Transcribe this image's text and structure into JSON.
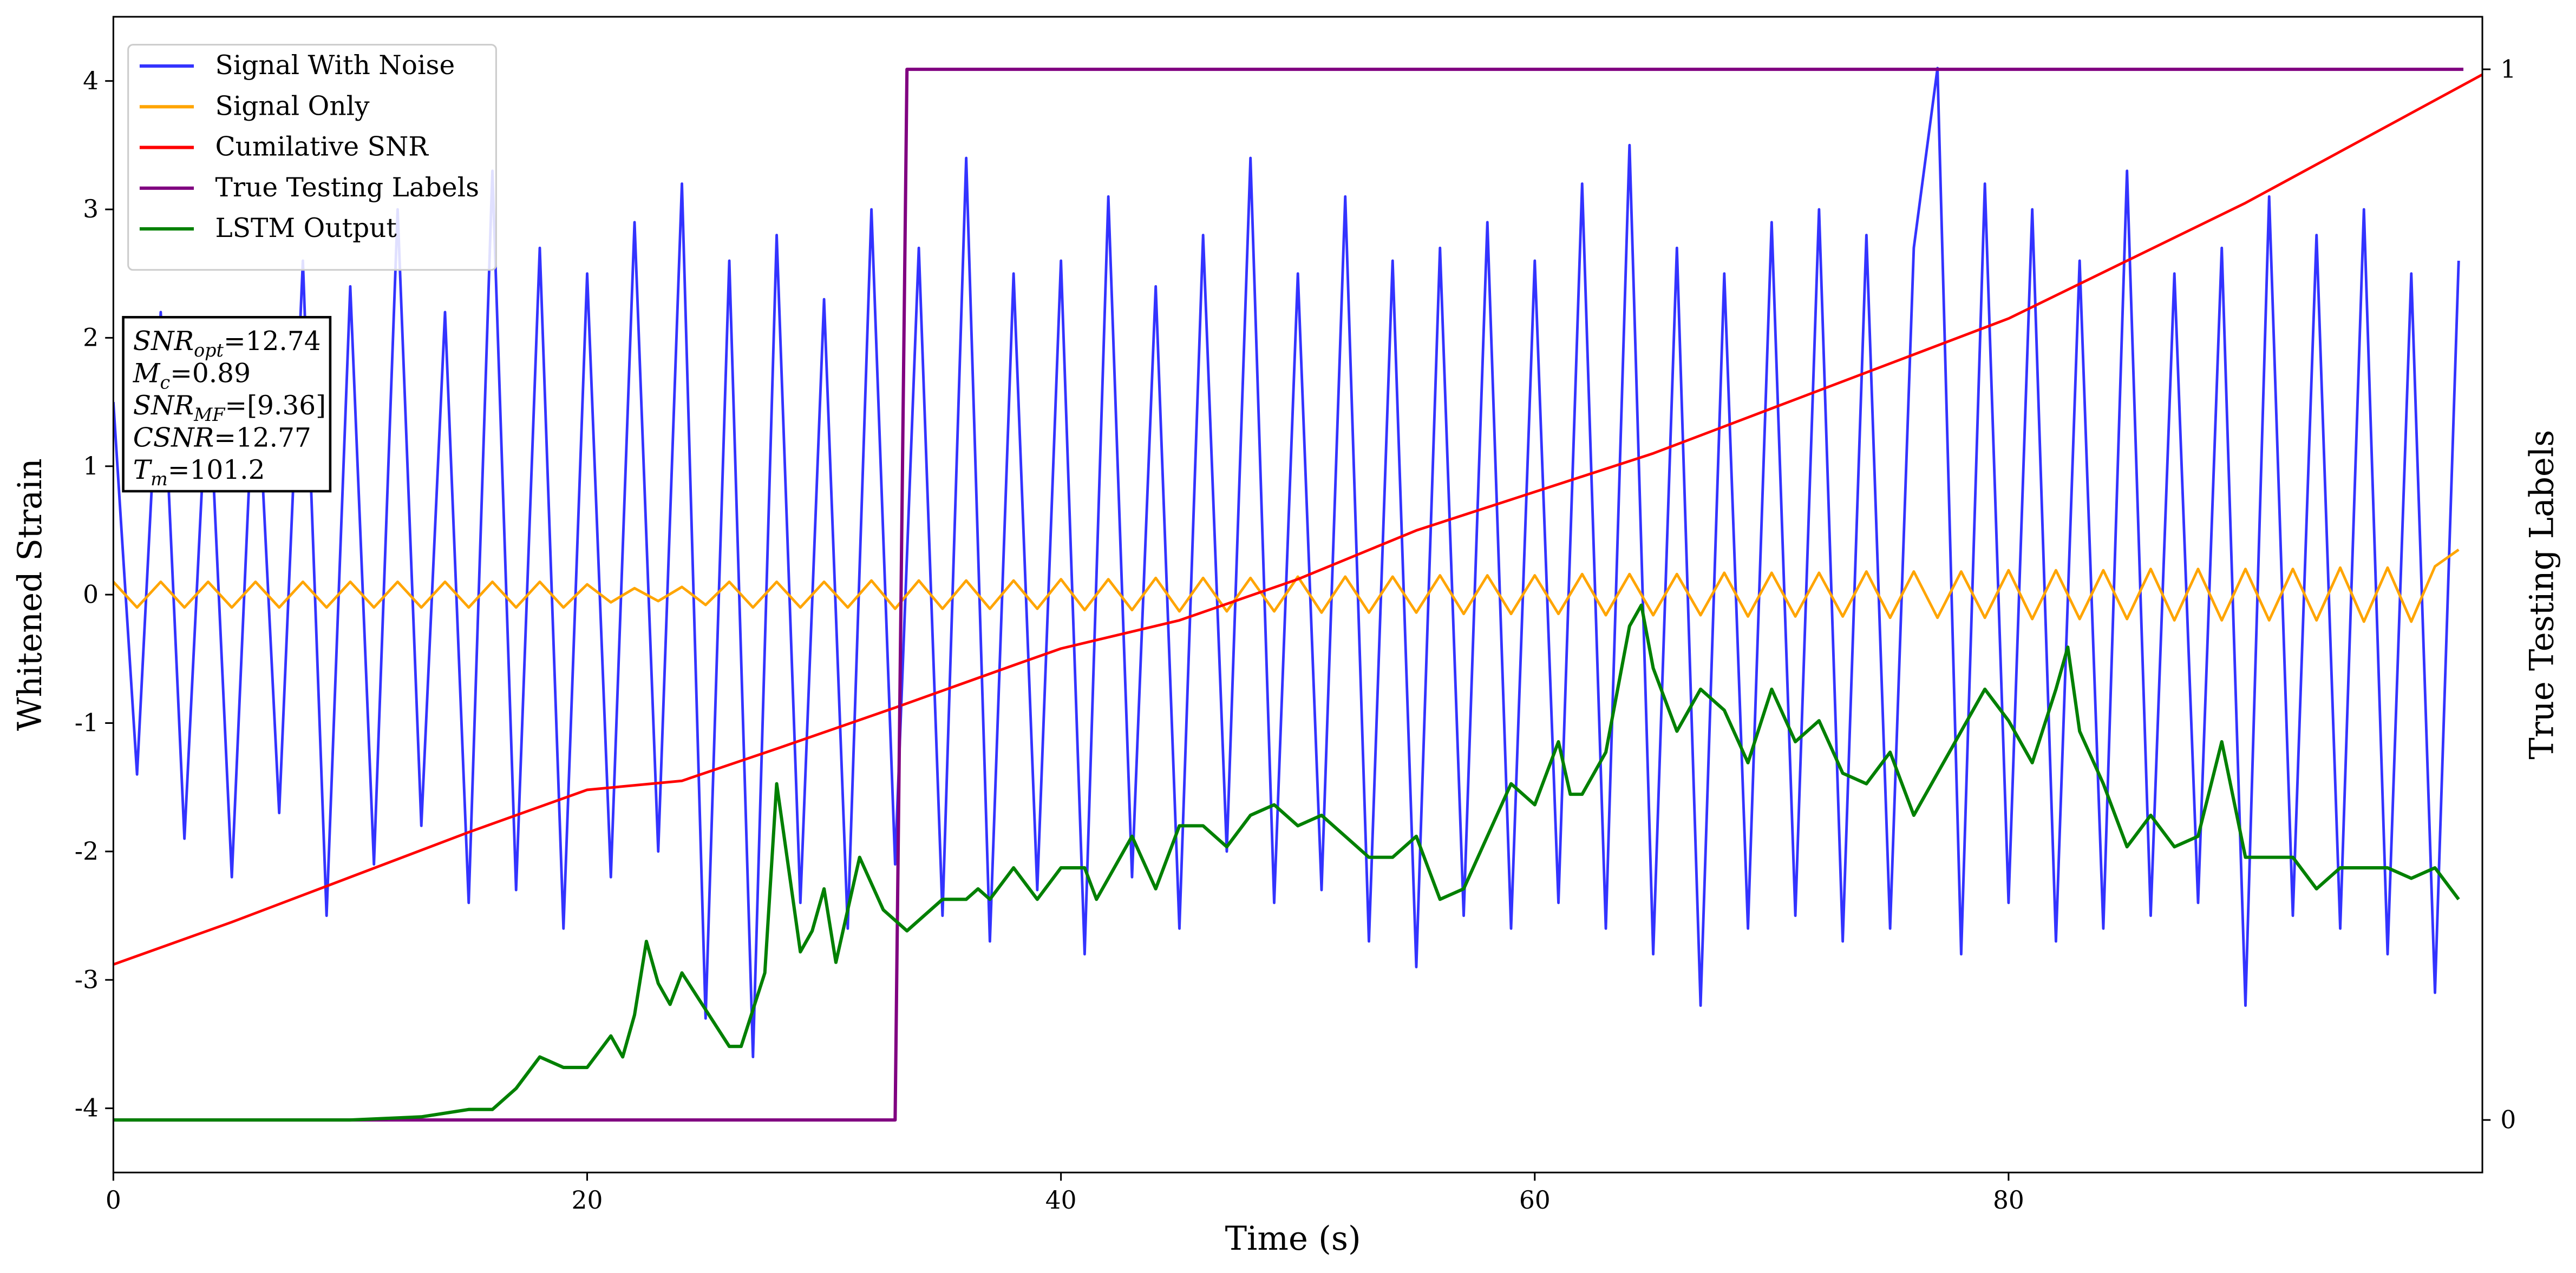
{
  "chart_data": {
    "type": "line",
    "xlabel": "Time (s)",
    "ylabel": "Whitened Strain",
    "y2label": "True Testing Labels",
    "xlim": [
      0,
      100
    ],
    "xticks": [
      0,
      20,
      40,
      60,
      80
    ],
    "ylim": [
      -4.5,
      4.5
    ],
    "yticks": [
      -4,
      -3,
      -2,
      -1,
      0,
      1,
      2,
      3,
      4
    ],
    "y2lim": [
      -0.05,
      1.05
    ],
    "y2ticks": [
      0,
      1
    ],
    "legend": "upper left",
    "x": [
      0,
      1,
      2,
      3,
      4,
      5,
      6,
      7,
      8,
      9,
      10,
      11,
      12,
      13,
      14,
      15,
      16,
      17,
      18,
      19,
      20,
      21,
      22,
      23,
      24,
      25,
      26,
      27,
      28,
      29,
      30,
      31,
      32,
      33,
      34,
      35,
      36,
      37,
      38,
      39,
      40,
      41,
      42,
      43,
      44,
      45,
      46,
      47,
      48,
      49,
      50,
      51,
      52,
      53,
      54,
      55,
      56,
      57,
      58,
      59,
      60,
      61,
      62,
      63,
      64,
      65,
      66,
      67,
      68,
      69,
      70,
      71,
      72,
      73,
      74,
      75,
      76,
      77,
      78,
      79,
      80,
      81,
      82,
      83,
      84,
      85,
      86,
      87,
      88,
      89,
      90,
      91,
      92,
      93,
      94,
      95,
      96,
      97,
      98,
      99
    ],
    "series": [
      {
        "name": "Signal With Noise",
        "color": "#3333ff",
        "values": [
          1.5,
          -1.4,
          2.2,
          -1.9,
          1.8,
          -2.2,
          2.0,
          -1.7,
          2.6,
          -2.5,
          2.4,
          -2.1,
          3.0,
          -1.8,
          2.2,
          -2.4,
          3.3,
          -2.3,
          2.7,
          -2.6,
          2.5,
          -2.2,
          2.9,
          -2.0,
          3.2,
          -3.3,
          2.6,
          -3.6,
          2.8,
          -2.4,
          2.3,
          -2.6,
          3.0,
          -2.1,
          2.7,
          -2.5,
          3.4,
          -2.7,
          2.5,
          -2.3,
          2.6,
          -2.8,
          3.1,
          -2.2,
          2.4,
          -2.6,
          2.8,
          -2.0,
          3.4,
          -2.4,
          2.5,
          -2.3,
          3.1,
          -2.7,
          2.6,
          -2.9,
          2.7,
          -2.5,
          2.9,
          -2.6,
          2.6,
          -2.4,
          3.2,
          -2.6,
          3.5,
          -2.8,
          2.7,
          -3.2,
          2.5,
          -2.6,
          2.9,
          -2.5,
          3.0,
          -2.7,
          2.8,
          -2.6,
          2.7,
          4.1,
          -2.8,
          3.2,
          -2.4,
          3.0,
          -2.7,
          2.6,
          -2.6,
          3.3,
          -2.5,
          2.5,
          -2.4,
          2.7,
          -3.2,
          3.1,
          -2.5,
          2.8,
          -2.6,
          3.0,
          -2.8,
          2.5,
          -3.1,
          2.6
        ]
      },
      {
        "name": "Signal Only",
        "color": "#ffa500",
        "values": [
          0.1,
          -0.1,
          0.1,
          -0.1,
          0.1,
          -0.1,
          0.1,
          -0.1,
          0.1,
          -0.1,
          0.1,
          -0.1,
          0.1,
          -0.1,
          0.1,
          -0.1,
          0.1,
          -0.1,
          0.1,
          -0.1,
          0.08,
          -0.06,
          0.05,
          -0.05,
          0.06,
          -0.08,
          0.1,
          -0.1,
          0.1,
          -0.1,
          0.1,
          -0.1,
          0.11,
          -0.11,
          0.11,
          -0.11,
          0.11,
          -0.11,
          0.11,
          -0.11,
          0.12,
          -0.12,
          0.12,
          -0.12,
          0.13,
          -0.13,
          0.13,
          -0.13,
          0.13,
          -0.13,
          0.14,
          -0.14,
          0.14,
          -0.14,
          0.14,
          -0.14,
          0.15,
          -0.15,
          0.15,
          -0.15,
          0.15,
          -0.15,
          0.16,
          -0.16,
          0.16,
          -0.16,
          0.16,
          -0.16,
          0.17,
          -0.17,
          0.17,
          -0.17,
          0.17,
          -0.17,
          0.18,
          -0.18,
          0.18,
          -0.18,
          0.18,
          -0.18,
          0.19,
          -0.19,
          0.19,
          -0.19,
          0.19,
          -0.19,
          0.2,
          -0.2,
          0.2,
          -0.2,
          0.2,
          -0.2,
          0.2,
          -0.2,
          0.21,
          -0.21,
          0.21,
          -0.21,
          0.22,
          0.35
        ]
      },
      {
        "name": "Cumilative SNR",
        "color": "#ff0000",
        "x": [
          0,
          5,
          10,
          15,
          20,
          24,
          28,
          33,
          38,
          40,
          45,
          50,
          55,
          60,
          65,
          70,
          75,
          80,
          85,
          90,
          95,
          100
        ],
        "values": [
          -2.88,
          -2.55,
          -2.2,
          -1.85,
          -1.52,
          -1.45,
          -1.2,
          -0.88,
          -0.55,
          -0.42,
          -0.2,
          0.12,
          0.5,
          0.8,
          1.1,
          1.45,
          1.8,
          2.15,
          2.6,
          3.05,
          3.55,
          4.05
        ]
      },
      {
        "name": "True Testing Labels",
        "color": "#800080",
        "axis": "y2",
        "x": [
          0,
          33,
          33.5,
          99.2
        ],
        "values": [
          0,
          0,
          1,
          1
        ]
      },
      {
        "name": "LSTM Output",
        "color": "#008000",
        "axis": "y2",
        "x": [
          0,
          10,
          13,
          15,
          16,
          17,
          18,
          19,
          20,
          21,
          21.5,
          22,
          22.5,
          23,
          23.5,
          24,
          26,
          26.5,
          27.5,
          28,
          29,
          29.5,
          30,
          30.5,
          31.5,
          32.5,
          33.5,
          35,
          36,
          36.5,
          37,
          38,
          39,
          40,
          41,
          41.5,
          42,
          43,
          44,
          45,
          46,
          47,
          48,
          49,
          50,
          51,
          52,
          53,
          54,
          55,
          56,
          57,
          58,
          59,
          60,
          61,
          61.5,
          62,
          63,
          64,
          64.5,
          65,
          66,
          67,
          68,
          69,
          70,
          71,
          72,
          73,
          74,
          75,
          76,
          77,
          78,
          79,
          80,
          81,
          82,
          82.5,
          83,
          84,
          85,
          86,
          87,
          88,
          89,
          90,
          92,
          93,
          94,
          96,
          97,
          98,
          99
        ],
        "values": [
          0,
          0,
          0.003,
          0.01,
          0.01,
          0.03,
          0.06,
          0.05,
          0.05,
          0.08,
          0.06,
          0.1,
          0.17,
          0.13,
          0.11,
          0.14,
          0.07,
          0.07,
          0.14,
          0.32,
          0.16,
          0.18,
          0.22,
          0.15,
          0.25,
          0.2,
          0.18,
          0.21,
          0.21,
          0.22,
          0.21,
          0.24,
          0.21,
          0.24,
          0.24,
          0.21,
          0.23,
          0.27,
          0.22,
          0.28,
          0.28,
          0.26,
          0.29,
          0.3,
          0.28,
          0.29,
          0.27,
          0.25,
          0.25,
          0.27,
          0.21,
          0.22,
          0.27,
          0.32,
          0.3,
          0.36,
          0.31,
          0.31,
          0.35,
          0.47,
          0.49,
          0.43,
          0.37,
          0.41,
          0.39,
          0.34,
          0.41,
          0.36,
          0.38,
          0.33,
          0.32,
          0.35,
          0.29,
          0.33,
          0.37,
          0.41,
          0.38,
          0.34,
          0.41,
          0.45,
          0.37,
          0.32,
          0.26,
          0.29,
          0.26,
          0.27,
          0.36,
          0.25,
          0.25,
          0.22,
          0.24,
          0.24,
          0.23,
          0.24,
          0.21
        ]
      }
    ],
    "annotations": [
      {
        "symbol": "SNR",
        "subscript": "opt",
        "text": "=12.74"
      },
      {
        "symbol": "M",
        "subscript": "c",
        "text": "=0.89"
      },
      {
        "symbol": "SNR",
        "subscript": "MF",
        "text": "=[9.36]"
      },
      {
        "symbol": "CSNR",
        "text": "=12.77"
      },
      {
        "symbol": "T",
        "subscript": "m",
        "text": "=101.2"
      }
    ]
  }
}
